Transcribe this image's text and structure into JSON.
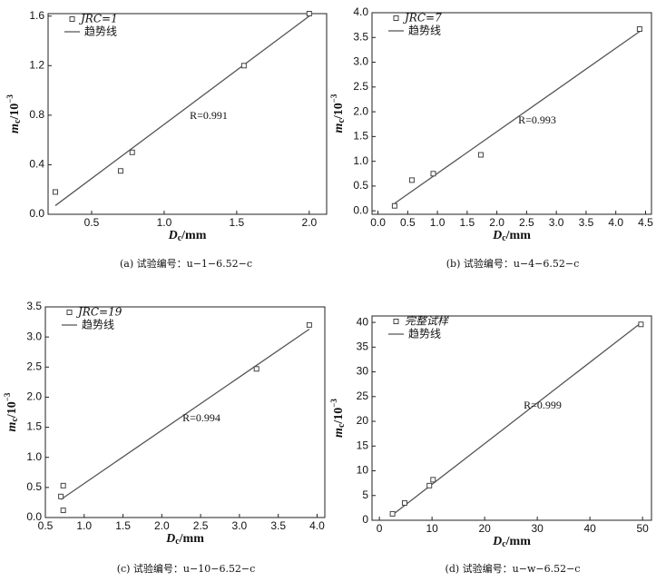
{
  "chart_data": [
    {
      "type": "scatter",
      "caption": "(a) 试验编号：u−1−6.52−c",
      "xlabel": {
        "symbol": "D",
        "sub": "c",
        "unit": "/mm"
      },
      "ylabel": {
        "symbol": "m",
        "sub": "c",
        "unit": "/10",
        "sup": "−3"
      },
      "xlim": [
        0.2,
        2.12
      ],
      "ylim": [
        0,
        1.62
      ],
      "xticks": [
        0.5,
        {
          "value": 1,
          "label": "1.0"
        },
        1.5,
        {
          "value": 2,
          "label": "2.0"
        }
      ],
      "yticks": [
        {
          "value": 0,
          "label": "0.0"
        },
        0.4,
        0.8,
        1.2,
        1.6
      ],
      "series": [
        {
          "name": "JRC=1",
          "color": "#444444",
          "x": [
            0.25,
            0.7,
            0.78,
            1.55,
            2.0
          ],
          "y": [
            0.18,
            0.35,
            0.5,
            1.2,
            1.62
          ]
        }
      ],
      "trend": {
        "name": "趋势线",
        "color": "#555555",
        "x": [
          0.25,
          2.0
        ],
        "y": [
          0.07,
          1.6
        ]
      },
      "annotation": "R=0.991"
    },
    {
      "type": "scatter",
      "caption": "(b) 试验编号：u−4−6.52−c",
      "xlabel": {
        "symbol": "D",
        "sub": "c",
        "unit": "/mm"
      },
      "ylabel": {
        "symbol": "m",
        "sub": "c",
        "unit": "/10",
        "sup": "−3"
      },
      "xlim": [
        -0.1,
        4.6
      ],
      "ylim": [
        -0.07,
        4.0
      ],
      "xticks": [
        {
          "value": 0,
          "label": "0.0"
        },
        0.5,
        {
          "value": 1,
          "label": "1.0"
        },
        1.5,
        {
          "value": 2,
          "label": "2.0"
        },
        2.5,
        {
          "value": 3,
          "label": "3.0"
        },
        3.5,
        {
          "value": 4,
          "label": "4.0"
        },
        4.5
      ],
      "yticks": [
        {
          "value": 0,
          "label": "0.0"
        },
        0.5,
        {
          "value": 1,
          "label": "1.0"
        },
        1.5,
        {
          "value": 2,
          "label": "2.0"
        },
        2.5,
        {
          "value": 3,
          "label": "3.0"
        },
        3.5,
        {
          "value": 4,
          "label": "4.0"
        }
      ],
      "series": [
        {
          "name": "JRC=7",
          "color": "#444444",
          "x": [
            0.28,
            0.57,
            0.93,
            1.73,
            4.4
          ],
          "y": [
            0.1,
            0.62,
            0.75,
            1.13,
            3.67
          ]
        }
      ],
      "trend": {
        "name": "趋势线",
        "color": "#555555",
        "x": [
          0.28,
          4.4
        ],
        "y": [
          0.15,
          3.62
        ]
      },
      "annotation": "R=0.993"
    },
    {
      "type": "scatter",
      "caption": "(c) 试验编号：u−10−6.52−c",
      "xlabel": {
        "symbol": "D",
        "sub": "c",
        "unit": "/mm"
      },
      "ylabel": {
        "symbol": "m",
        "sub": "c",
        "unit": "/10",
        "sup": "−3"
      },
      "xlim": [
        0.5,
        4.1
      ],
      "ylim": [
        0,
        3.5
      ],
      "xticks": [
        0.5,
        {
          "value": 1,
          "label": "1.0"
        },
        1.5,
        {
          "value": 2,
          "label": "2.0"
        },
        2.5,
        {
          "value": 3,
          "label": "3.0"
        },
        3.5,
        {
          "value": 4,
          "label": "4.0"
        }
      ],
      "yticks": [
        {
          "value": 0,
          "label": "0.0"
        },
        0.5,
        {
          "value": 1,
          "label": "1.0"
        },
        1.5,
        {
          "value": 2,
          "label": "2.0"
        },
        2.5,
        {
          "value": 3,
          "label": "3.0"
        },
        3.5
      ],
      "series": [
        {
          "name": "JRC=19",
          "color": "#444444",
          "x": [
            0.7,
            0.73,
            0.73,
            3.22,
            3.9
          ],
          "y": [
            0.35,
            0.53,
            0.12,
            2.47,
            3.2
          ]
        }
      ],
      "trend": {
        "name": "趋势线",
        "color": "#555555",
        "x": [
          0.7,
          3.9
        ],
        "y": [
          0.3,
          3.13
        ]
      },
      "annotation": "R=0.994"
    },
    {
      "type": "scatter",
      "caption": "(d) 试验编号：u−w−6.52−c",
      "xlabel": {
        "symbol": "D",
        "sub": "c",
        "unit": "/mm"
      },
      "ylabel": {
        "symbol": "m",
        "sub": "c",
        "unit": "/10",
        "sup": "−3"
      },
      "xlim": [
        -1.4,
        51.7
      ],
      "ylim": [
        0,
        41.3
      ],
      "xticks": [
        0,
        10,
        20,
        30,
        40,
        50
      ],
      "yticks": [
        0,
        5,
        10,
        15,
        20,
        25,
        30,
        35,
        40
      ],
      "series": [
        {
          "name": "完整试样",
          "color": "#444444",
          "x": [
            2.5,
            4.8,
            9.5,
            10.2,
            49.7
          ],
          "y": [
            1.3,
            3.5,
            7,
            8.2,
            39.6
          ]
        }
      ],
      "trend": {
        "name": "趋势线",
        "color": "#555555",
        "x": [
          2.5,
          49.7
        ],
        "y": [
          1.1,
          39.9
        ]
      },
      "annotation": "R=0.999"
    }
  ]
}
